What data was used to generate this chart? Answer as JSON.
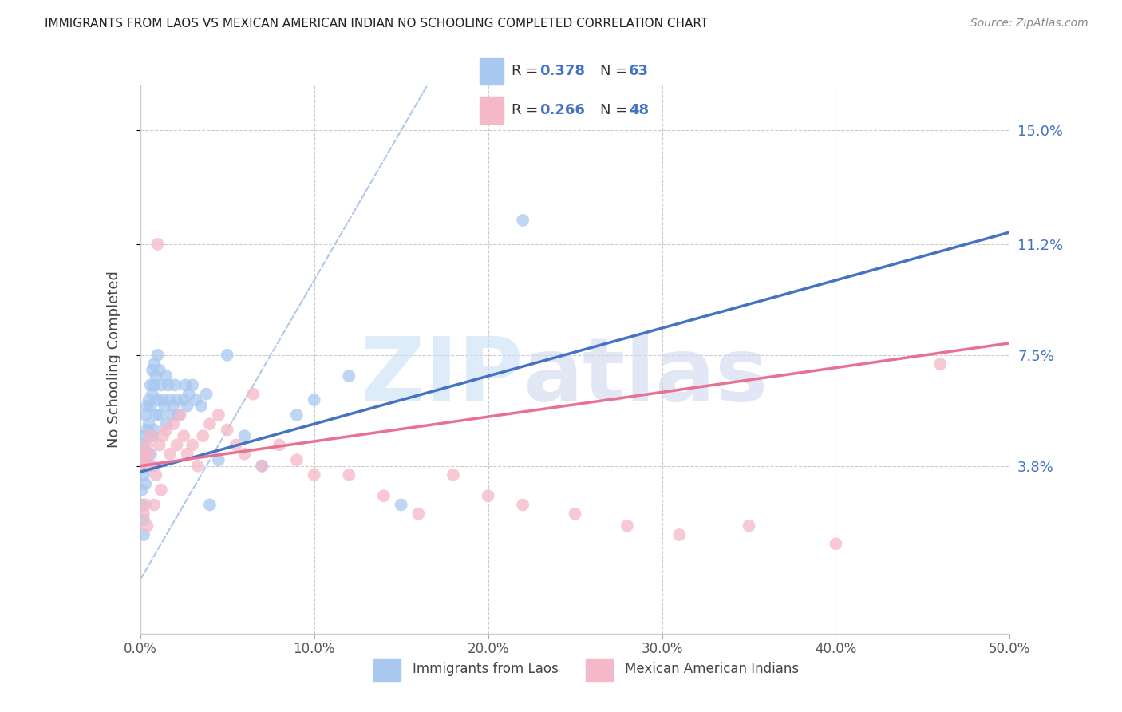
{
  "title": "IMMIGRANTS FROM LAOS VS MEXICAN AMERICAN INDIAN NO SCHOOLING COMPLETED CORRELATION CHART",
  "source": "Source: ZipAtlas.com",
  "ylabel": "No Schooling Completed",
  "xlabel": "",
  "legend1_label": "Immigrants from Laos",
  "legend2_label": "Mexican American Indians",
  "r1": 0.378,
  "n1": 63,
  "r2": 0.266,
  "n2": 48,
  "color_blue": "#A8C8F0",
  "color_pink": "#F5B8C8",
  "line_blue": "#4472C4",
  "line_pink": "#E87090",
  "legend_text_color": "#4472C4",
  "legend_label_color": "#333333",
  "ytick_labels": [
    "3.8%",
    "7.5%",
    "11.2%",
    "15.0%"
  ],
  "ytick_values": [
    0.038,
    0.075,
    0.112,
    0.15
  ],
  "xtick_labels": [
    "0.0%",
    "10.0%",
    "20.0%",
    "30.0%",
    "40.0%",
    "50.0%"
  ],
  "xtick_values": [
    0.0,
    0.1,
    0.2,
    0.3,
    0.4,
    0.5
  ],
  "xlim": [
    0.0,
    0.5
  ],
  "ylim": [
    -0.018,
    0.165
  ],
  "ref_line_color": "#B0C8E8",
  "grid_color": "#CCCCCC",
  "background_color": "#FFFFFF",
  "watermark_zip_color": "#C8E0F8",
  "watermark_atlas_color": "#D0D8F0"
}
